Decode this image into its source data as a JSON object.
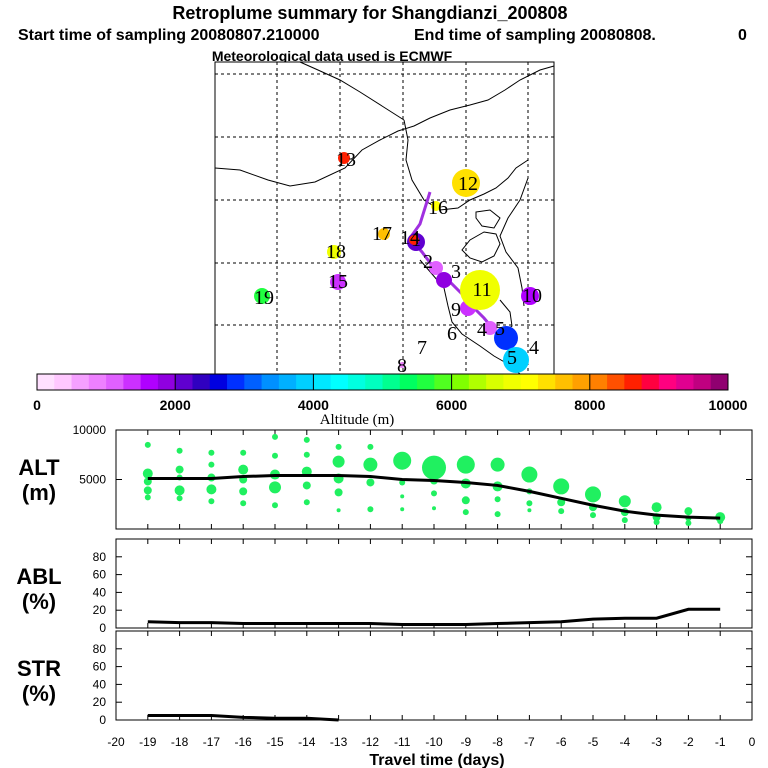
{
  "title": "Retroplume summary for Shangdianzi_200808",
  "subtitle_start": "Start time of sampling 20080807.210000",
  "subtitle_end": "End time of sampling 20080808.",
  "subtitle_end_tail": "0",
  "subtitle_met": "Meteorological data used is ECMWF",
  "colorbar": {
    "label": "Altitude (m)",
    "min": 0,
    "max": 10000,
    "tick_labels": [
      "0",
      "2000",
      "4000",
      "6000",
      "8000",
      "10000"
    ],
    "colors": [
      "#ffe0ff",
      "#ffc8ff",
      "#f5a0ff",
      "#ee80ff",
      "#e060ff",
      "#cc30ff",
      "#b000ff",
      "#9000e0",
      "#6000d0",
      "#3000c0",
      "#0000e0",
      "#0030ff",
      "#0060ff",
      "#0090ff",
      "#00b0ff",
      "#00d0ff",
      "#00e8ff",
      "#00ffff",
      "#00ffe0",
      "#00ffc0",
      "#00ff90",
      "#00ff60",
      "#20ff40",
      "#50ff20",
      "#80ff00",
      "#b0ff00",
      "#d8ff00",
      "#f0ff00",
      "#ffff00",
      "#ffe000",
      "#ffc000",
      "#ffa000",
      "#ff8000",
      "#ff5000",
      "#ff2000",
      "#ff0040",
      "#ff0080",
      "#e00090",
      "#c00080",
      "#900070"
    ]
  },
  "map": {
    "points": [
      {
        "label": "1",
        "alt": 2200,
        "size": 9
      },
      {
        "label": "2",
        "alt": 1000,
        "size": 7
      },
      {
        "label": "3",
        "alt": 1800,
        "size": 8
      },
      {
        "label": "4",
        "alt": 1200,
        "size": 7
      },
      {
        "label": "4",
        "alt": 2800,
        "size": 12
      },
      {
        "label": "5",
        "alt": 3800,
        "size": 13
      },
      {
        "label": "5",
        "alt": 1200,
        "size": 0
      },
      {
        "label": "6",
        "alt": 1200,
        "size": 0
      },
      {
        "label": "7",
        "alt": 800,
        "size": 3
      },
      {
        "label": "8",
        "alt": 1400,
        "size": 8
      },
      {
        "label": "9",
        "alt": 1600,
        "size": 9
      },
      {
        "label": "10",
        "alt": 6800,
        "size": 20
      },
      {
        "label": "11",
        "alt": 7300,
        "size": 14
      },
      {
        "label": "12",
        "alt": 8500,
        "size": 6
      },
      {
        "label": "13",
        "alt": 8500,
        "size": 5
      },
      {
        "label": "14",
        "alt": 1300,
        "size": 8
      },
      {
        "label": "15",
        "alt": 7000,
        "size": 5
      },
      {
        "label": "16",
        "alt": 7500,
        "size": 6
      },
      {
        "label": "17",
        "alt": 6800,
        "size": 7
      },
      {
        "label": "18",
        "alt": 6000,
        "size": 6
      },
      {
        "label": "19",
        "alt": 5600,
        "size": 8
      }
    ]
  },
  "chart_data": [
    {
      "type": "scatter",
      "title": "ALT (m)",
      "ylabel_top": "ALT",
      "ylabel_bottom": "(m)",
      "ylim": [
        0,
        10000
      ],
      "yticks": [
        "5000",
        "10000"
      ],
      "x": [
        -19,
        -18,
        -17,
        -16,
        -15,
        -14,
        -13,
        -12,
        -11,
        -10,
        -9,
        -8,
        -7,
        -6,
        -5,
        -4,
        -3,
        -2,
        -1
      ],
      "mean_line": [
        5100,
        5100,
        5100,
        5300,
        5400,
        5400,
        5400,
        5300,
        5000,
        4900,
        4700,
        4400,
        3800,
        3100,
        2400,
        1800,
        1400,
        1200,
        1100
      ],
      "dots": [
        {
          "day": -19,
          "alt": 8500,
          "r": 3
        },
        {
          "day": -19,
          "alt": 5600,
          "r": 5
        },
        {
          "day": -19,
          "alt": 4800,
          "r": 4
        },
        {
          "day": -19,
          "alt": 3900,
          "r": 4
        },
        {
          "day": -19,
          "alt": 3200,
          "r": 3
        },
        {
          "day": -18,
          "alt": 7900,
          "r": 3
        },
        {
          "day": -18,
          "alt": 6000,
          "r": 4
        },
        {
          "day": -18,
          "alt": 5200,
          "r": 3
        },
        {
          "day": -18,
          "alt": 3900,
          "r": 5
        },
        {
          "day": -18,
          "alt": 3100,
          "r": 3
        },
        {
          "day": -17,
          "alt": 7700,
          "r": 3
        },
        {
          "day": -17,
          "alt": 6500,
          "r": 3
        },
        {
          "day": -17,
          "alt": 5200,
          "r": 4
        },
        {
          "day": -17,
          "alt": 4000,
          "r": 5
        },
        {
          "day": -17,
          "alt": 2800,
          "r": 3
        },
        {
          "day": -16,
          "alt": 7700,
          "r": 3
        },
        {
          "day": -16,
          "alt": 6000,
          "r": 5
        },
        {
          "day": -16,
          "alt": 5000,
          "r": 4
        },
        {
          "day": -16,
          "alt": 3800,
          "r": 4
        },
        {
          "day": -16,
          "alt": 2600,
          "r": 3
        },
        {
          "day": -15,
          "alt": 9300,
          "r": 3
        },
        {
          "day": -15,
          "alt": 7400,
          "r": 3
        },
        {
          "day": -15,
          "alt": 5500,
          "r": 5
        },
        {
          "day": -15,
          "alt": 4200,
          "r": 6
        },
        {
          "day": -15,
          "alt": 2400,
          "r": 3
        },
        {
          "day": -14,
          "alt": 9000,
          "r": 3
        },
        {
          "day": -14,
          "alt": 7500,
          "r": 3
        },
        {
          "day": -14,
          "alt": 5800,
          "r": 5
        },
        {
          "day": -14,
          "alt": 4400,
          "r": 4
        },
        {
          "day": -14,
          "alt": 2700,
          "r": 3
        },
        {
          "day": -13,
          "alt": 8300,
          "r": 3
        },
        {
          "day": -13,
          "alt": 6800,
          "r": 6
        },
        {
          "day": -13,
          "alt": 5100,
          "r": 5
        },
        {
          "day": -13,
          "alt": 3700,
          "r": 4
        },
        {
          "day": -13,
          "alt": 1900,
          "r": 2
        },
        {
          "day": -12,
          "alt": 8300,
          "r": 3
        },
        {
          "day": -12,
          "alt": 6500,
          "r": 7
        },
        {
          "day": -12,
          "alt": 4700,
          "r": 4
        },
        {
          "day": -12,
          "alt": 2000,
          "r": 3
        },
        {
          "day": -11,
          "alt": 6900,
          "r": 9
        },
        {
          "day": -11,
          "alt": 4700,
          "r": 3
        },
        {
          "day": -11,
          "alt": 3300,
          "r": 2
        },
        {
          "day": -11,
          "alt": 2000,
          "r": 2
        },
        {
          "day": -10,
          "alt": 6200,
          "r": 12
        },
        {
          "day": -10,
          "alt": 4900,
          "r": 4
        },
        {
          "day": -10,
          "alt": 3600,
          "r": 3
        },
        {
          "day": -10,
          "alt": 2100,
          "r": 2
        },
        {
          "day": -9,
          "alt": 6500,
          "r": 9
        },
        {
          "day": -9,
          "alt": 4600,
          "r": 5
        },
        {
          "day": -9,
          "alt": 2900,
          "r": 4
        },
        {
          "day": -9,
          "alt": 1700,
          "r": 3
        },
        {
          "day": -8,
          "alt": 6500,
          "r": 7
        },
        {
          "day": -8,
          "alt": 4300,
          "r": 5
        },
        {
          "day": -8,
          "alt": 3000,
          "r": 3
        },
        {
          "day": -8,
          "alt": 1500,
          "r": 3
        },
        {
          "day": -7,
          "alt": 5500,
          "r": 8
        },
        {
          "day": -7,
          "alt": 3800,
          "r": 3
        },
        {
          "day": -7,
          "alt": 2600,
          "r": 3
        },
        {
          "day": -7,
          "alt": 1900,
          "r": 2
        },
        {
          "day": -6,
          "alt": 4300,
          "r": 8
        },
        {
          "day": -6,
          "alt": 2700,
          "r": 4
        },
        {
          "day": -6,
          "alt": 1800,
          "r": 3
        },
        {
          "day": -5,
          "alt": 3500,
          "r": 8
        },
        {
          "day": -5,
          "alt": 2200,
          "r": 4
        },
        {
          "day": -5,
          "alt": 1400,
          "r": 3
        },
        {
          "day": -4,
          "alt": 2800,
          "r": 6
        },
        {
          "day": -4,
          "alt": 1700,
          "r": 4
        },
        {
          "day": -4,
          "alt": 900,
          "r": 3
        },
        {
          "day": -3,
          "alt": 2200,
          "r": 5
        },
        {
          "day": -3,
          "alt": 1200,
          "r": 4
        },
        {
          "day": -3,
          "alt": 700,
          "r": 3
        },
        {
          "day": -2,
          "alt": 1800,
          "r": 4
        },
        {
          "day": -2,
          "alt": 1100,
          "r": 3
        },
        {
          "day": -2,
          "alt": 600,
          "r": 3
        },
        {
          "day": -1,
          "alt": 1200,
          "r": 5
        },
        {
          "day": -1,
          "alt": 800,
          "r": 3
        }
      ]
    },
    {
      "type": "line",
      "title": "ABL (%)",
      "ylabel_top": "ABL",
      "ylabel_bottom": "(%)",
      "ylim": [
        0,
        100
      ],
      "yticks": [
        "0",
        "20",
        "40",
        "60",
        "80"
      ],
      "x": [
        -19,
        -18,
        -17,
        -16,
        -15,
        -14,
        -13,
        -12,
        -11,
        -10,
        -9,
        -8,
        -7,
        -6,
        -5,
        -4,
        -3,
        -2,
        -1
      ],
      "values": [
        7,
        6,
        6,
        5,
        5,
        5,
        5,
        5,
        4,
        4,
        4,
        5,
        6,
        7,
        10,
        11,
        11,
        21,
        21
      ]
    },
    {
      "type": "line",
      "title": "STR (%)",
      "ylabel_top": "STR",
      "ylabel_bottom": "(%)",
      "ylim": [
        0,
        100
      ],
      "yticks": [
        "0",
        "20",
        "40",
        "60",
        "80"
      ],
      "x": [
        -19,
        -18,
        -17,
        -16,
        -15,
        -14,
        -13
      ],
      "values": [
        5,
        5,
        5,
        3,
        2,
        2,
        0
      ],
      "xlabel": "Travel time (days)",
      "xticks": [
        "-20",
        "-19",
        "-18",
        "-17",
        "-16",
        "-15",
        "-14",
        "-13",
        "-12",
        "-11",
        "-10",
        "-9",
        "-8",
        "-7",
        "-6",
        "-5",
        "-4",
        "-3",
        "-2",
        "-1",
        "0"
      ]
    }
  ]
}
